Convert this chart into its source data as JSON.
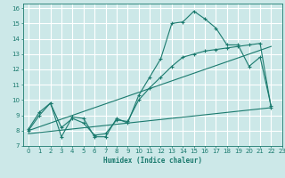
{
  "xlabel": "Humidex (Indice chaleur)",
  "ylabel": "",
  "xlim": [
    -0.5,
    23
  ],
  "ylim": [
    7,
    16.3
  ],
  "xticks": [
    0,
    1,
    2,
    3,
    4,
    5,
    6,
    7,
    8,
    9,
    10,
    11,
    12,
    13,
    14,
    15,
    16,
    17,
    18,
    19,
    20,
    21,
    22,
    23
  ],
  "yticks": [
    7,
    8,
    9,
    10,
    11,
    12,
    13,
    14,
    15,
    16
  ],
  "bg_color": "#cce8e8",
  "grid_color": "#ffffff",
  "line_color": "#1a7a6e",
  "line1_x": [
    0,
    1,
    2,
    3,
    4,
    5,
    6,
    7,
    8,
    9,
    10,
    11,
    12,
    13,
    14,
    15,
    16,
    17,
    18,
    19,
    20,
    21,
    22
  ],
  "line1_y": [
    8.1,
    9.2,
    9.8,
    7.6,
    8.9,
    8.8,
    7.6,
    7.6,
    8.8,
    8.5,
    10.3,
    11.5,
    12.7,
    15.0,
    15.1,
    15.8,
    15.3,
    14.7,
    13.6,
    13.6,
    12.2,
    12.8,
    9.6
  ],
  "line2_x": [
    0,
    1,
    2,
    3,
    4,
    5,
    6,
    7,
    8,
    9,
    10,
    11,
    12,
    13,
    14,
    15,
    16,
    17,
    18,
    19,
    20,
    21,
    22
  ],
  "line2_y": [
    8.0,
    9.0,
    9.8,
    8.2,
    8.8,
    8.5,
    7.7,
    7.8,
    8.7,
    8.6,
    10.0,
    10.8,
    11.5,
    12.2,
    12.8,
    13.0,
    13.2,
    13.3,
    13.4,
    13.5,
    13.6,
    13.7,
    9.5
  ],
  "line3_x": [
    0,
    22
  ],
  "line3_y": [
    8.0,
    13.5
  ],
  "line4_x": [
    0,
    22
  ],
  "line4_y": [
    7.8,
    9.5
  ]
}
